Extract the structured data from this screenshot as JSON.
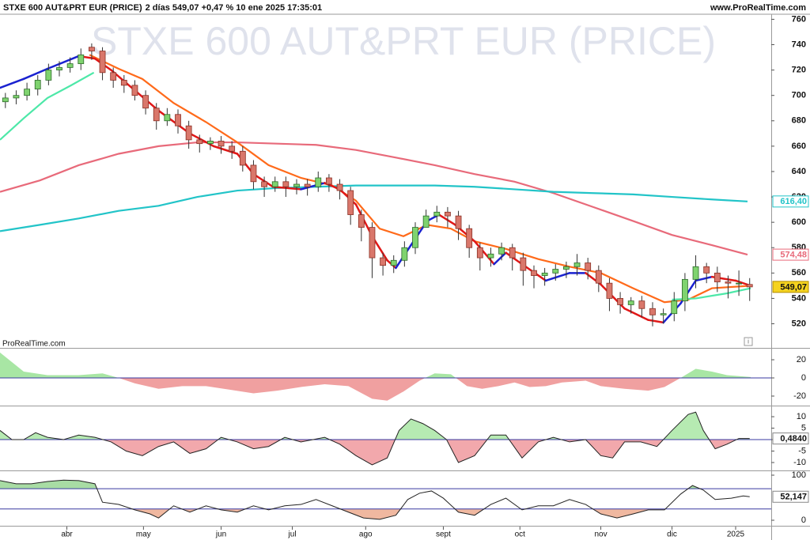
{
  "chart_data": [
    {
      "type": "candlestick",
      "title": "STXE 600 AUT&PRT EUR (PRICE)",
      "subtitle": "2 días 549,07 +0,47 % 10 ene 2025 17:35:01",
      "source": "www.ProRealTime.com",
      "footer": "ProRealTime.com",
      "xlim": [
        -0.5,
        71
      ],
      "ylim": [
        501,
        764
      ],
      "yticks": [
        520,
        540,
        560,
        580,
        600,
        620,
        640,
        660,
        680,
        700,
        720,
        740,
        760
      ],
      "up_color": "#7fd36f",
      "down_color": "#d9776b",
      "x": [
        0,
        1,
        2,
        3,
        4,
        5,
        6,
        7,
        8,
        9,
        10,
        11,
        12,
        13,
        14,
        15,
        16,
        17,
        18,
        19,
        20,
        21,
        22,
        23,
        24,
        25,
        26,
        27,
        28,
        29,
        30,
        31,
        32,
        33,
        34,
        35,
        36,
        37,
        38,
        39,
        40,
        41,
        42,
        43,
        44,
        45,
        46,
        47,
        48,
        49,
        50,
        51,
        52,
        53,
        54,
        55,
        56,
        57,
        58,
        59,
        60,
        61,
        62,
        63,
        64,
        65,
        66,
        67,
        68,
        69
      ],
      "open": [
        695,
        698,
        700,
        705,
        712,
        720,
        722,
        725,
        738,
        735,
        718,
        712,
        708,
        700,
        690,
        680,
        685,
        676,
        665,
        662,
        664,
        660,
        656,
        645,
        632,
        628,
        632,
        628,
        630,
        628,
        635,
        630,
        625,
        606,
        596,
        572,
        566,
        570,
        580,
        596,
        605,
        608,
        605,
        595,
        580,
        572,
        575,
        580,
        572,
        562,
        558,
        560,
        563,
        565,
        568,
        562,
        552,
        540,
        535,
        538,
        532,
        527,
        528,
        538,
        555,
        565,
        560,
        553,
        552,
        551
      ],
      "high": [
        702,
        704,
        710,
        716,
        725,
        727,
        730,
        737,
        741,
        738,
        722,
        716,
        712,
        704,
        694,
        690,
        689,
        680,
        669,
        667,
        668,
        664,
        660,
        649,
        636,
        636,
        636,
        634,
        634,
        640,
        638,
        634,
        628,
        610,
        600,
        576,
        574,
        585,
        600,
        610,
        613,
        612,
        609,
        598,
        584,
        580,
        584,
        583,
        576,
        566,
        564,
        567,
        569,
        575,
        572,
        566,
        556,
        545,
        541,
        542,
        537,
        532,
        545,
        560,
        574,
        568,
        565,
        558,
        562,
        556
      ],
      "low": [
        690,
        693,
        696,
        700,
        708,
        715,
        718,
        720,
        728,
        712,
        706,
        702,
        696,
        685,
        673,
        676,
        670,
        658,
        655,
        657,
        654,
        650,
        640,
        626,
        620,
        624,
        620,
        622,
        621,
        624,
        624,
        618,
        598,
        585,
        556,
        558,
        560,
        565,
        575,
        596,
        600,
        596,
        586,
        572,
        562,
        565,
        570,
        562,
        550,
        548,
        550,
        554,
        556,
        558,
        555,
        545,
        530,
        528,
        528,
        525,
        518,
        520,
        522,
        530,
        548,
        552,
        545,
        540,
        542,
        538
      ],
      "close": [
        698,
        700,
        705,
        712,
        720,
        722,
        725,
        732,
        735,
        718,
        712,
        708,
        700,
        690,
        680,
        685,
        676,
        665,
        662,
        664,
        660,
        656,
        645,
        632,
        628,
        632,
        628,
        630,
        628,
        635,
        630,
        625,
        606,
        596,
        572,
        566,
        570,
        580,
        596,
        605,
        608,
        605,
        595,
        580,
        572,
        575,
        580,
        572,
        562,
        558,
        560,
        563,
        565,
        568,
        562,
        552,
        540,
        535,
        538,
        532,
        527,
        528,
        538,
        555,
        565,
        560,
        553,
        552,
        552,
        549.07
      ],
      "last_value_label": "549,07",
      "overlays": [
        {
          "color": "#e86a7a",
          "x": [
            -0.5,
            3.2,
            6.8,
            10.5,
            14.2,
            17.8,
            21.5,
            25.2,
            28.8,
            32.5,
            36.2,
            39.8,
            43.5,
            47.2,
            50.8,
            54.5,
            58.2,
            61.8,
            65.5,
            68.8
          ],
          "values": [
            624,
            633,
            645,
            654,
            660,
            663,
            663,
            662,
            661,
            657,
            651,
            645,
            638,
            632,
            623,
            612,
            601,
            590,
            582,
            574.48
          ],
          "last_value_label": "574,48"
        },
        {
          "color": "#22c4c8",
          "x": [
            -0.5,
            3.2,
            6.8,
            10.5,
            14.2,
            17.8,
            21.5,
            25.2,
            28.8,
            32.5,
            36.2,
            39.8,
            43.5,
            47.2,
            50.8,
            54.5,
            58.2,
            61.8,
            65.5,
            68.8
          ],
          "values": [
            593,
            598,
            603,
            609,
            613,
            620,
            625,
            627,
            628,
            629,
            629,
            629,
            628,
            626,
            624,
            623,
            622,
            620,
            618,
            616.4
          ],
          "last_value_label": "616,40"
        },
        {
          "color": "#ff6a1a",
          "x": [
            7.8,
            10.5,
            12.7,
            15.6,
            18.6,
            21.5,
            24.4,
            27.4,
            30.3,
            32.5,
            34.7,
            36.9,
            39.1,
            41.3,
            43.5,
            46.4,
            49.4,
            52.3,
            55.2,
            58.2,
            61.1,
            63.3,
            65.5,
            69.1
          ],
          "values": [
            732,
            721,
            713,
            694,
            679,
            663,
            645,
            635,
            629,
            617,
            595,
            589,
            598,
            595,
            585,
            579,
            571,
            565,
            560,
            548,
            537,
            539,
            548,
            550
          ]
        },
        {
          "color": "#4de8a8",
          "x": [
            -0.5,
            1.7,
            3.9,
            6.1,
            8.2
          ],
          "values": [
            665,
            682,
            698,
            708,
            718
          ]
        },
        {
          "color": "#4de8a8",
          "x": [
            61.8,
            64.0,
            66.9,
            69.1
          ],
          "values": [
            539,
            540,
            544,
            548
          ]
        },
        {
          "color_up": "#1a22d0",
          "color_down": "#e01818",
          "x": [
            -0.5,
            1.7,
            3.9,
            6.8,
            8.3,
            9.8,
            12.0,
            14.2,
            17.1,
            19.3,
            21.5,
            23.0,
            24.8,
            27.4,
            29.6,
            31.0,
            32.5,
            34.0,
            35.4,
            36.2,
            37.6,
            39.1,
            40.2,
            41.7,
            43.5,
            45.3,
            46.4,
            47.9,
            50.1,
            52.3,
            53.8,
            55.2,
            57.4,
            59.6,
            61.0,
            62.6,
            64.0,
            65.5,
            67.7,
            69.1
          ],
          "values": [
            706,
            713,
            721,
            731,
            729,
            720,
            704,
            688,
            670,
            660,
            654,
            638,
            628,
            626,
            631,
            626,
            614,
            589,
            570,
            564,
            582,
            601,
            606,
            598,
            585,
            567,
            576,
            567,
            554,
            560,
            560,
            551,
            532,
            523,
            521,
            536,
            554,
            557,
            554,
            550
          ]
        }
      ]
    },
    {
      "type": "area",
      "xlim": [
        -0.5,
        71
      ],
      "ylim": [
        -29.6,
        32.2
      ],
      "yticks": [
        20,
        0,
        -20
      ],
      "levels": [
        0
      ],
      "level_color": "#3a3aa0",
      "pos_color": "#a8e6a4",
      "neg_color": "#f0a0a0",
      "x": [
        -0.5,
        1.7,
        3.9,
        6.8,
        9.0,
        10.5,
        12.0,
        14.2,
        16.4,
        18.6,
        20.8,
        23.0,
        25.2,
        27.4,
        29.6,
        31.8,
        34.0,
        35.4,
        36.9,
        38.4,
        39.8,
        41.3,
        42.8,
        44.2,
        45.7,
        47.2,
        48.6,
        50.1,
        51.6,
        53.8,
        55.2,
        57.4,
        59.6,
        61.1,
        62.6,
        64.0,
        65.5,
        66.9,
        69.1
      ],
      "values": [
        28,
        7,
        3,
        3,
        5,
        0,
        -6,
        -12,
        -9,
        -9,
        -13,
        -17,
        -14,
        -10,
        -7,
        -9,
        -23,
        -25,
        -15,
        -3,
        5,
        4,
        -9,
        -12,
        -9,
        -5,
        -10,
        -9,
        -5,
        -3,
        -9,
        -12,
        -14,
        -10,
        0,
        10,
        7,
        3,
        1
      ]
    },
    {
      "type": "area",
      "xlim": [
        -0.5,
        71
      ],
      "ylim": [
        -13.1,
        14.5
      ],
      "yticks": [
        10,
        5,
        0,
        -5,
        -10
      ],
      "levels": [
        0
      ],
      "level_color": "#3a3aa0",
      "pos_color": "#b6eab2",
      "neg_color": "#f2a8ac",
      "line_color": "#222",
      "x": [
        -0.5,
        0.6,
        1.7,
        2.8,
        3.9,
        5.4,
        6.8,
        8.3,
        9.8,
        11.2,
        12.7,
        14.2,
        15.6,
        17.1,
        18.6,
        20.0,
        21.5,
        23.0,
        24.4,
        25.9,
        27.4,
        29.6,
        31.0,
        32.5,
        34.0,
        35.4,
        36.5,
        37.6,
        38.7,
        39.8,
        40.9,
        42.0,
        43.5,
        45.0,
        46.4,
        47.9,
        49.4,
        50.8,
        52.3,
        53.8,
        55.2,
        56.3,
        57.4,
        58.9,
        60.4,
        61.8,
        63.3,
        64.0,
        64.7,
        65.8,
        66.9,
        68.0,
        69.0
      ],
      "values": [
        4,
        0,
        0,
        3,
        1,
        0,
        2,
        1,
        -1,
        -5,
        -7,
        -3,
        -1,
        -6,
        -4,
        1,
        -1,
        -4,
        -3,
        1,
        -1,
        1,
        -2,
        -7,
        -11,
        -8,
        4,
        9,
        7,
        4,
        0,
        -10,
        -7,
        2,
        2,
        -8,
        -1,
        1,
        -1,
        0,
        -7,
        -8,
        -1,
        -1,
        -3,
        4,
        11,
        12,
        4,
        -4,
        -2,
        0.5,
        0.484
      ],
      "last_value_label": "0,4840"
    },
    {
      "type": "area",
      "xlim": [
        -0.5,
        71
      ],
      "ylim": [
        -12.3,
        108.8
      ],
      "yticks": [
        100,
        0
      ],
      "levels": [
        70,
        25
      ],
      "level_color": "#3a3aa0",
      "pos_color": "#a8dca4",
      "neg_color": "#f0b8a0",
      "line_color": "#222",
      "x": [
        -0.5,
        1.0,
        2.4,
        3.9,
        5.4,
        6.8,
        8.3,
        9.0,
        10.5,
        12.0,
        13.4,
        14.2,
        15.6,
        17.1,
        18.6,
        20.0,
        21.5,
        23.0,
        24.4,
        25.9,
        27.4,
        28.8,
        30.3,
        31.8,
        33.2,
        34.7,
        36.2,
        37.3,
        38.4,
        39.5,
        40.6,
        42.0,
        43.5,
        45.0,
        46.4,
        47.9,
        49.4,
        50.8,
        52.3,
        53.8,
        55.2,
        56.7,
        58.2,
        59.6,
        61.1,
        62.6,
        63.7,
        64.7,
        65.8,
        67.3,
        68.4,
        69.0
      ],
      "values": [
        88,
        81,
        81,
        86,
        89,
        88,
        81,
        40,
        35,
        23,
        14,
        5,
        32,
        18,
        32,
        23,
        18,
        32,
        23,
        32,
        35,
        46,
        32,
        18,
        5,
        2,
        11,
        46,
        60,
        65,
        49,
        18,
        11,
        35,
        49,
        23,
        32,
        32,
        46,
        35,
        14,
        5,
        14,
        23,
        23,
        58,
        77,
        67,
        46,
        49,
        54,
        52.147
      ],
      "last_value_label": "52,147",
      "xticks": [
        {
          "value": 5.7,
          "label": "abr"
        },
        {
          "value": 12.8,
          "label": "may"
        },
        {
          "value": 20.0,
          "label": "jun"
        },
        {
          "value": 26.6,
          "label": "jul"
        },
        {
          "value": 33.4,
          "label": "ago"
        },
        {
          "value": 40.6,
          "label": "sept"
        },
        {
          "value": 47.7,
          "label": "oct"
        },
        {
          "value": 55.2,
          "label": "nov"
        },
        {
          "value": 61.8,
          "label": "dic"
        },
        {
          "value": 67.7,
          "label": "2025"
        }
      ]
    }
  ]
}
